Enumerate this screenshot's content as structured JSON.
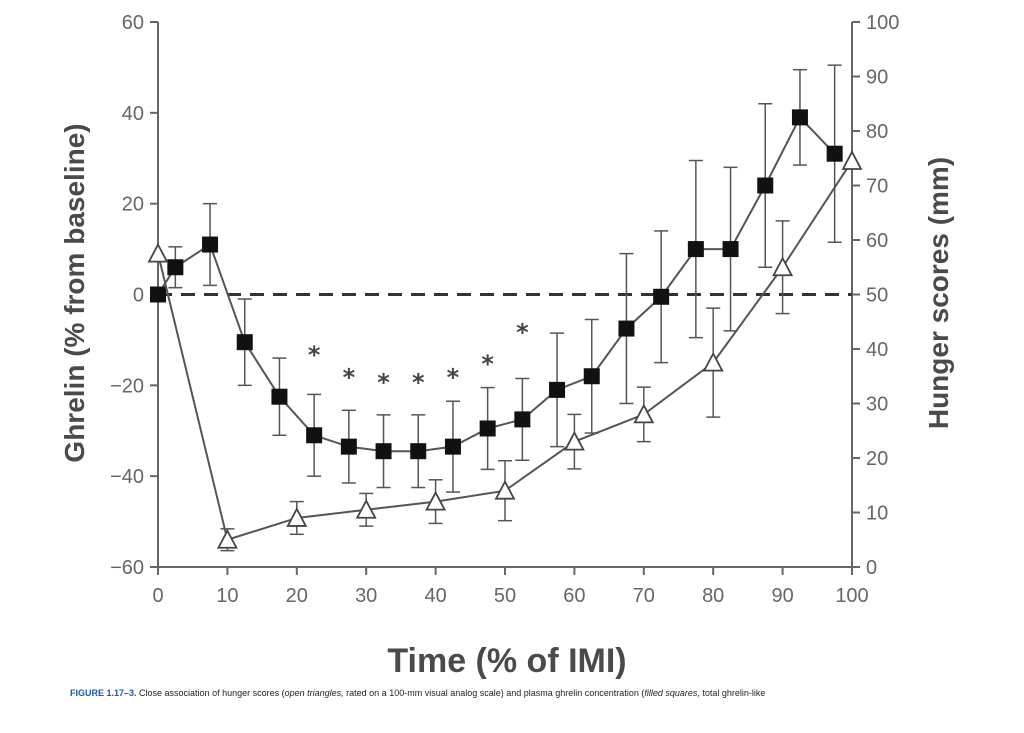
{
  "chart_data": {
    "type": "line",
    "title": "",
    "xlabel": "Time (% of IMI)",
    "ylabel": "Ghrelin (% from baseline)",
    "y2label": "Hunger scores (mm)",
    "xlim": [
      0,
      100
    ],
    "ylim": [
      -60,
      60
    ],
    "y2lim": [
      0,
      100
    ],
    "x_ticks": [
      0,
      10,
      20,
      30,
      40,
      50,
      60,
      70,
      80,
      90,
      100
    ],
    "y_ticks": [
      -60,
      -40,
      -20,
      0,
      20,
      40,
      60
    ],
    "y2_ticks": [
      0,
      10,
      20,
      30,
      40,
      50,
      60,
      70,
      80,
      90,
      100
    ],
    "tick_labels": {
      "x": [
        "0",
        "10",
        "20",
        "30",
        "40",
        "50",
        "60",
        "70",
        "80",
        "90",
        "100"
      ],
      "y": [
        "60",
        "40",
        "20",
        "0",
        "−20",
        "−40",
        "−60"
      ],
      "y2": [
        "100",
        "90",
        "80",
        "70",
        "60",
        "50",
        "40",
        "30",
        "20",
        "10",
        "0"
      ]
    },
    "reference_line": {
      "y": 0,
      "style": "dashed"
    },
    "series": [
      {
        "marker": "filled-square",
        "axis": "left",
        "x": [
          0,
          2.5,
          7.5,
          12.5,
          17.5,
          22.5,
          27.5,
          32.5,
          37.5,
          42.5,
          47.5,
          52.5,
          57.5,
          62.5,
          67.5,
          72.5,
          77.5,
          82.5,
          87.5,
          92.5,
          97.5
        ],
        "y": [
          0,
          6,
          11,
          -10.5,
          -22.5,
          -31,
          -33.5,
          -34.5,
          -34.5,
          -33.5,
          -29.5,
          -27.5,
          -21,
          -18,
          -7.5,
          -0.5,
          10,
          10,
          24,
          39,
          31
        ],
        "err": [
          0,
          4.5,
          9,
          9.5,
          8.5,
          9,
          8,
          8,
          8,
          10,
          9,
          9,
          12.5,
          12.5,
          16.5,
          14.5,
          19.5,
          18,
          18,
          10.5,
          19.5
        ]
      },
      {
        "marker": "open-triangle",
        "axis": "right",
        "x": [
          0,
          10,
          20,
          30,
          40,
          50,
          60,
          70,
          80,
          90,
          100
        ],
        "y": [
          57.5,
          5,
          9,
          10.5,
          12,
          14,
          23,
          28,
          37.5,
          55,
          74.5
        ],
        "err": [
          0,
          2,
          3,
          3,
          4,
          5.5,
          5,
          5,
          10,
          8.5,
          0
        ]
      }
    ],
    "annotations": [
      {
        "x": 22.5,
        "y": -12,
        "text": "*"
      },
      {
        "x": 27.5,
        "y": -17,
        "text": "*"
      },
      {
        "x": 32.5,
        "y": -18,
        "text": "*"
      },
      {
        "x": 37.5,
        "y": -18,
        "text": "*"
      },
      {
        "x": 42.5,
        "y": -17,
        "text": "*"
      },
      {
        "x": 47.5,
        "y": -14,
        "text": "*"
      },
      {
        "x": 52.5,
        "y": -7,
        "text": "*"
      }
    ]
  },
  "caption": {
    "label": "FIGURE 1.17–3.",
    "part1": " Close association of hunger scores (",
    "italic1": "open triangles,",
    "part2": " rated on a 100-mm visual analog scale) and plasma ghrelin concentration (",
    "italic2": "filled squares,",
    "part3": " total ghrelin-like"
  }
}
